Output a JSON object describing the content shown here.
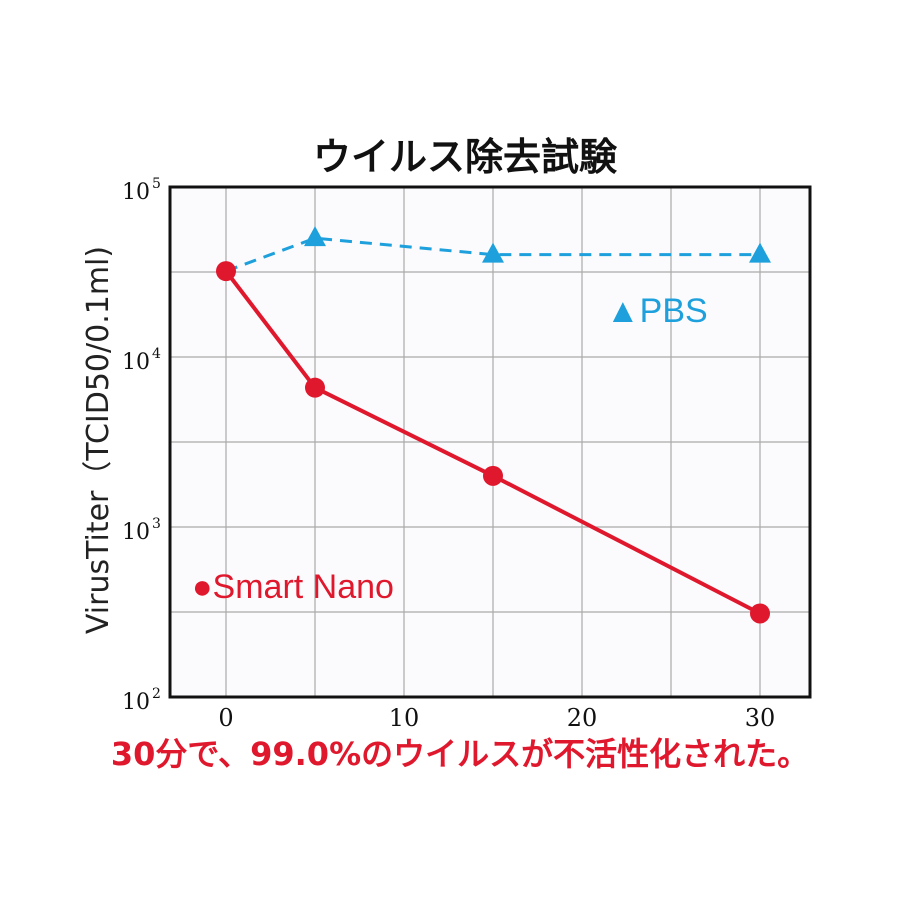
{
  "colors": {
    "smart_nano": "#e0182d",
    "pbs": "#1ea0dc",
    "grid": "#aaaaaa",
    "frame": "#111111",
    "plot_bg": "#fbfbfd",
    "caption": "#e0182d"
  },
  "chart_data": {
    "type": "line",
    "title": "ウイルス除去試験",
    "ylabel": "VirusTiter（TCID50/0.1ml)",
    "xlabel": "",
    "x_ticks": [
      "0",
      "10",
      "20",
      "30"
    ],
    "xlim": [
      0,
      32
    ],
    "y_scale": "log",
    "ylim": [
      100,
      100000
    ],
    "y_ticks": [
      {
        "base": "10",
        "exp": "2"
      },
      {
        "base": "10",
        "exp": "3"
      },
      {
        "base": "10",
        "exp": "4"
      },
      {
        "base": "10",
        "exp": "5"
      }
    ],
    "grid": true,
    "series": [
      {
        "name": "Smart Nano",
        "legend_label": "●Smart Nano",
        "marker": "circle",
        "line_style": "solid",
        "x": [
          0,
          5,
          15,
          30
        ],
        "y": [
          32000,
          6600,
          2000,
          310
        ]
      },
      {
        "name": "PBS",
        "legend_label": "▲PBS",
        "marker": "triangle",
        "line_style": "dashed",
        "x": [
          0,
          5,
          15,
          30
        ],
        "y": [
          32000,
          50000,
          40000,
          40000
        ]
      }
    ]
  },
  "caption": "30分で、99.0%のウイルスが不活性化された。"
}
